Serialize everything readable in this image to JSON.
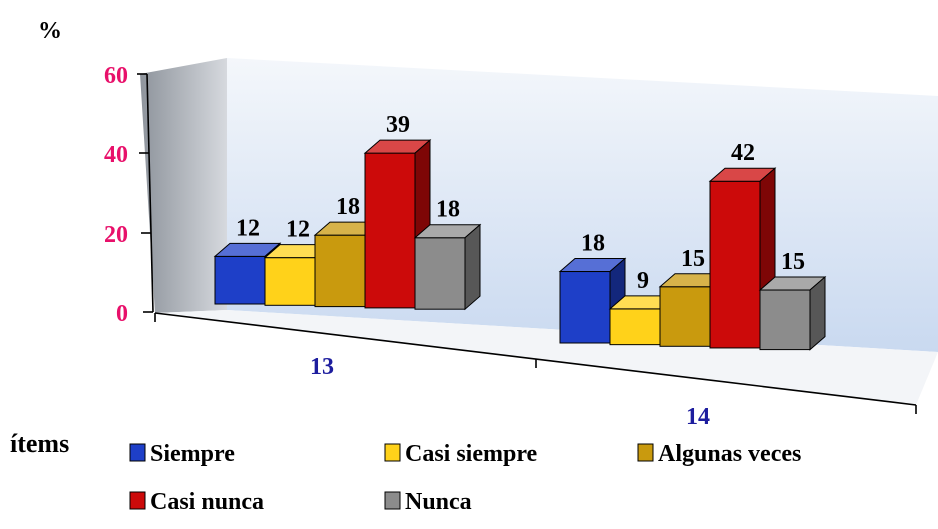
{
  "chart_data": {
    "type": "bar",
    "ylabel": "%",
    "xlabel": "ítems",
    "ylim": [
      0,
      60
    ],
    "yticks": [
      "0",
      "20",
      "40",
      "60"
    ],
    "categories": [
      "13",
      "14"
    ],
    "series": [
      {
        "name": "Siempre",
        "values": [
          12,
          18
        ],
        "color": "#1e3fc8"
      },
      {
        "name": "Casi siempre",
        "values": [
          12,
          9
        ],
        "color": "#ffd21a"
      },
      {
        "name": "Algunas veces",
        "values": [
          18,
          15
        ],
        "color": "#c99a0e"
      },
      {
        "name": "Casi nunca",
        "values": [
          39,
          42
        ],
        "color": "#cc0a0a"
      },
      {
        "name": "Nunca",
        "values": [
          18,
          15
        ],
        "color": "#8c8c8c"
      }
    ],
    "data_labels": [
      [
        "12",
        "12",
        "18",
        "39",
        "18"
      ],
      [
        "18",
        "9",
        "15",
        "42",
        "15"
      ]
    ],
    "legend_position": "bottom",
    "grid": false
  },
  "colors": {
    "tick_label": "#e8106a",
    "category_label": "#1d1d9e",
    "text": "#000000"
  }
}
